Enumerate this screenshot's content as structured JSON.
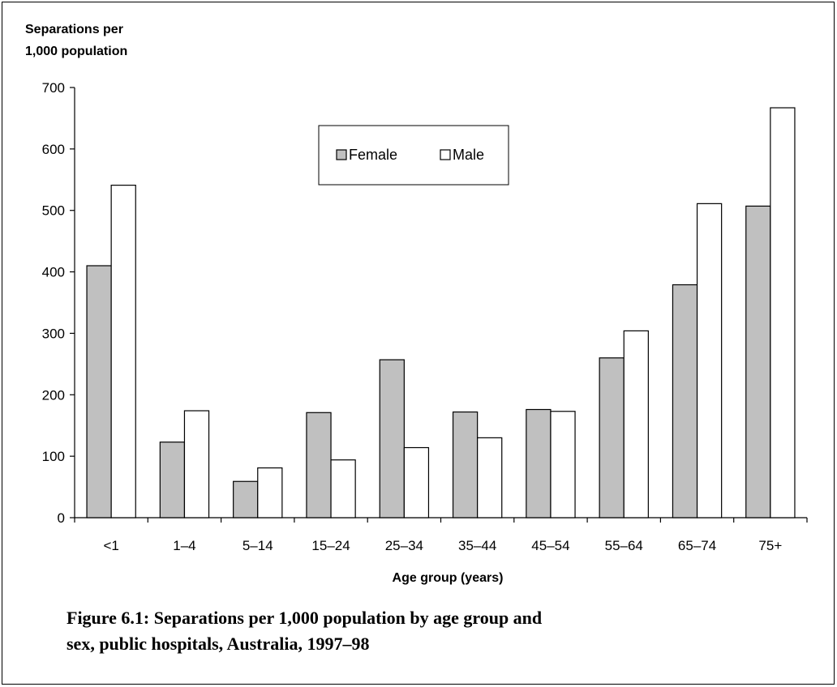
{
  "chart_data": {
    "type": "bar",
    "ylabel_lines": [
      "Separations per",
      "1,000 population"
    ],
    "xlabel": "Age group (years)",
    "categories": [
      "<1",
      "1–4",
      "5–14",
      "15–24",
      "25–34",
      "35–44",
      "45–54",
      "55–64",
      "65–74",
      "75+"
    ],
    "series": [
      {
        "name": "Female",
        "color": "#c0c0c0",
        "values": [
          410,
          123,
          59,
          171,
          257,
          172,
          176,
          260,
          379,
          507
        ]
      },
      {
        "name": "Male",
        "color": "#ffffff",
        "values": [
          541,
          174,
          81,
          94,
          114,
          130,
          173,
          304,
          511,
          667
        ]
      }
    ],
    "ylim": [
      0,
      700
    ],
    "yticks": [
      0,
      100,
      200,
      300,
      400,
      500,
      600,
      700
    ],
    "grid": false,
    "legend_position": "top-center"
  },
  "caption": {
    "line1": "Figure 6.1: Separations per 1,000 population by age group and",
    "line2": "sex, public hospitals, Australia, 1997–98"
  }
}
